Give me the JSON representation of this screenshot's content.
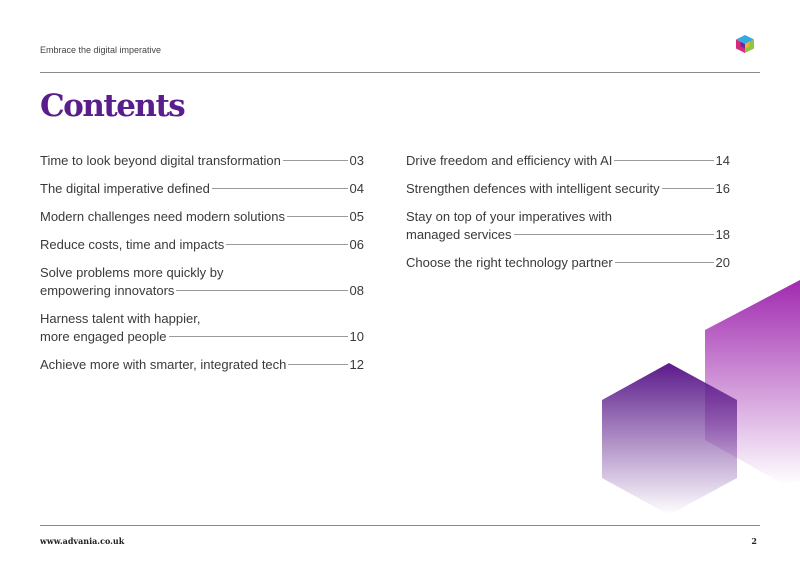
{
  "header": {
    "text": "Embrace the digital imperative"
  },
  "title": "Contents",
  "toc_left": [
    {
      "lines": [
        "Time to look beyond digital transformation"
      ],
      "page": "03"
    },
    {
      "lines": [
        "The digital imperative defined"
      ],
      "page": "04"
    },
    {
      "lines": [
        "Modern challenges need modern solutions"
      ],
      "page": "05"
    },
    {
      "lines": [
        "Reduce costs, time and impacts"
      ],
      "page": "06"
    },
    {
      "lines": [
        "Solve problems more quickly by",
        "empowering innovators"
      ],
      "page": "08"
    },
    {
      "lines": [
        "Harness talent with happier,",
        "more engaged people"
      ],
      "page": "10"
    },
    {
      "lines": [
        "Achieve more with smarter, integrated tech"
      ],
      "page": "12"
    }
  ],
  "toc_right": [
    {
      "lines": [
        "Drive freedom and efficiency with AI"
      ],
      "page": "14"
    },
    {
      "lines": [
        "Strengthen defences with intelligent security"
      ],
      "page": "16"
    },
    {
      "lines": [
        "Stay on top of your imperatives with",
        "managed services"
      ],
      "page": "18"
    },
    {
      "lines": [
        "Choose the right technology partner"
      ],
      "page": "20"
    }
  ],
  "footer": {
    "url": "www.advania.co.uk",
    "page_number": "2"
  },
  "colors": {
    "title": "#5a1e8c",
    "hex_purple": "#5b1a8a",
    "hex_magenta": "#a02ab0"
  }
}
